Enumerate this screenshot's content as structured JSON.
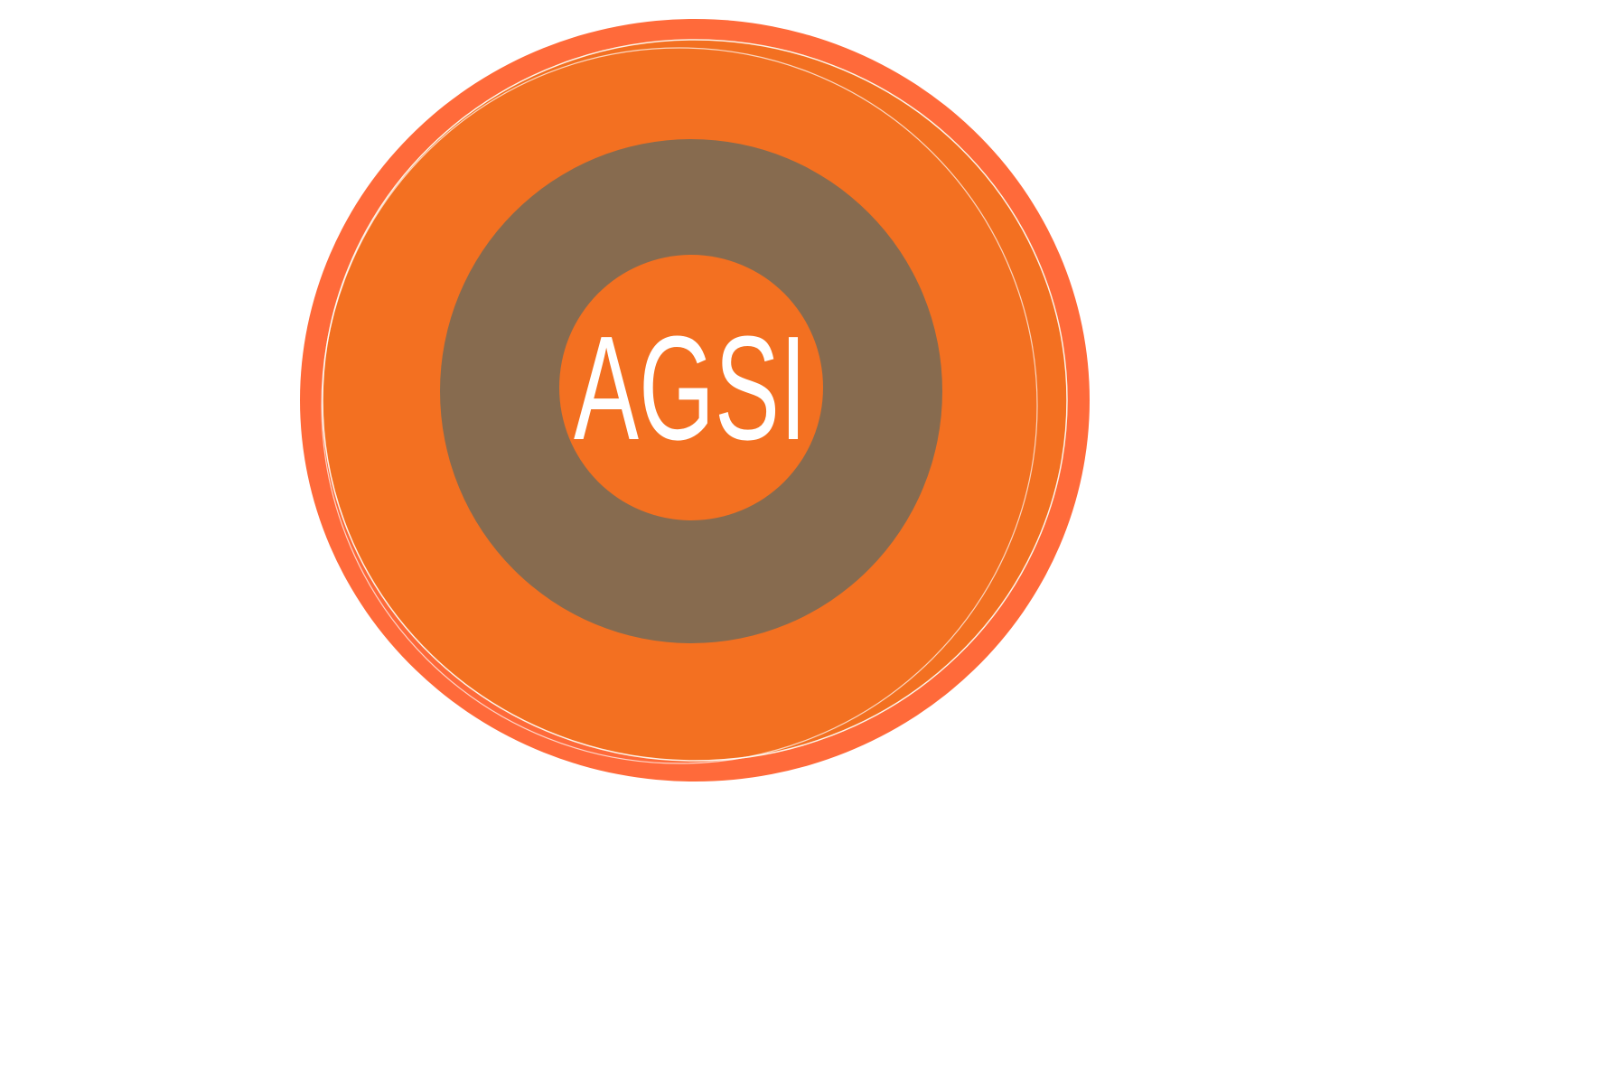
{
  "logo": {
    "text": "AGSI",
    "colors": {
      "outer_ring": "#FF6A3A",
      "outer_fill": "#F37021",
      "brown_ring": "#876B4F",
      "inner_fill": "#F37021",
      "text": "#FFFFFF",
      "background": "#FFFFFF"
    }
  }
}
